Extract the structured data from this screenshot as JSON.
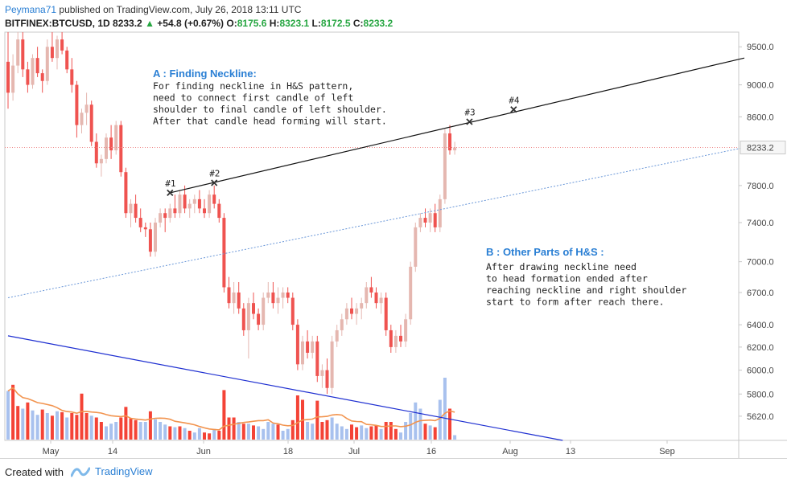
{
  "header": {
    "user": "Peymana71",
    "published": "published on TradingView.com, July 26, 2018 13:11 UTC"
  },
  "symbol": {
    "name": "BITFINEX:BTCUSD, 1D",
    "last": "8233.2",
    "change": "+54.8 (+0.67%)",
    "o_label": "O:",
    "o": "8175.6",
    "h_label": "H:",
    "h": "8323.1",
    "l_label": "L:",
    "l": "8172.5",
    "c_label": "C:",
    "c": "8233.2"
  },
  "footer": {
    "created_with": "Created with",
    "brand": "TradingView"
  },
  "colors": {
    "up": "#e5b7b0",
    "down": "#ef5350",
    "vol_up": "#a8c1ee",
    "vol_down": "#f44336",
    "ma": "#f2944f",
    "neckline": "#111111",
    "trend": "#1e2fd1",
    "dotted": "#6a97d8",
    "price_line": "#e88"
  },
  "chart_data": {
    "type": "candlestick",
    "y_scale": "log",
    "ylim": [
      5430,
      9700
    ],
    "y_ticks": [
      "9500.0",
      "9000.0",
      "8600.0",
      "8233.2",
      "7800.0",
      "7400.0",
      "7000.0",
      "6700.0",
      "6400.0",
      "6200.0",
      "6000.0",
      "5800.0",
      "5620.0"
    ],
    "x_labels": [
      "May",
      "14",
      "Jun",
      "18",
      "Jul",
      "16",
      "Aug",
      "13",
      "Sep"
    ],
    "last_price": 8233.2,
    "candles_ohlc": [
      [
        9300,
        9700,
        8700,
        8900
      ],
      [
        8900,
        9400,
        8800,
        9250
      ],
      [
        9250,
        9700,
        9150,
        9600
      ],
      [
        9600,
        9700,
        9100,
        9200
      ],
      [
        9200,
        9300,
        8900,
        9000
      ],
      [
        9000,
        9400,
        8950,
        9350
      ],
      [
        9350,
        9500,
        9100,
        9150
      ],
      [
        9150,
        9200,
        8900,
        9050
      ],
      [
        9050,
        9600,
        9000,
        9500
      ],
      [
        9500,
        9700,
        9300,
        9350
      ],
      [
        9350,
        9650,
        9200,
        9600
      ],
      [
        9600,
        9700,
        9400,
        9450
      ],
      [
        9450,
        9500,
        9150,
        9200
      ],
      [
        9200,
        9350,
        8900,
        9000
      ],
      [
        9000,
        9050,
        8350,
        8500
      ],
      [
        8500,
        8700,
        8400,
        8650
      ],
      [
        8650,
        8900,
        8500,
        8750
      ],
      [
        8750,
        8800,
        8250,
        8300
      ],
      [
        8300,
        8400,
        8000,
        8050
      ],
      [
        8050,
        8150,
        7900,
        8100
      ],
      [
        8100,
        8400,
        8050,
        8350
      ],
      [
        8350,
        8500,
        8100,
        8200
      ],
      [
        8200,
        8550,
        8150,
        8500
      ],
      [
        8500,
        8550,
        7900,
        7950
      ],
      [
        7950,
        8000,
        7450,
        7500
      ],
      [
        7500,
        7650,
        7350,
        7600
      ],
      [
        7600,
        7700,
        7400,
        7450
      ],
      [
        7450,
        7550,
        7300,
        7350
      ],
      [
        7350,
        7400,
        7250,
        7330
      ],
      [
        7330,
        7400,
        7050,
        7100
      ],
      [
        7100,
        7450,
        7050,
        7400
      ],
      [
        7400,
        7550,
        7350,
        7500
      ],
      [
        7500,
        7550,
        7300,
        7450
      ],
      [
        7450,
        7600,
        7400,
        7550
      ],
      [
        7550,
        7700,
        7450,
        7500
      ],
      [
        7500,
        7750,
        7450,
        7700
      ],
      [
        7700,
        7800,
        7500,
        7550
      ],
      [
        7550,
        7650,
        7450,
        7600
      ],
      [
        7600,
        7700,
        7500,
        7650
      ],
      [
        7650,
        7750,
        7500,
        7550
      ],
      [
        7550,
        7650,
        7450,
        7500
      ],
      [
        7500,
        7750,
        7450,
        7700
      ],
      [
        7700,
        7800,
        7550,
        7600
      ],
      [
        7600,
        7650,
        7400,
        7450
      ],
      [
        7450,
        7500,
        6700,
        6750
      ],
      [
        6750,
        6850,
        6550,
        6600
      ],
      [
        6600,
        6800,
        6500,
        6700
      ],
      [
        6700,
        6800,
        6500,
        6550
      ],
      [
        6550,
        6600,
        6300,
        6350
      ],
      [
        6350,
        6650,
        6100,
        6600
      ],
      [
        6600,
        6700,
        6450,
        6500
      ],
      [
        6500,
        6550,
        6350,
        6400
      ],
      [
        6400,
        6700,
        6350,
        6650
      ],
      [
        6650,
        6800,
        6600,
        6700
      ],
      [
        6700,
        6800,
        6550,
        6600
      ],
      [
        6600,
        6750,
        6500,
        6650
      ],
      [
        6650,
        6750,
        6550,
        6700
      ],
      [
        6700,
        6750,
        6600,
        6650
      ],
      [
        6650,
        6700,
        6350,
        6400
      ],
      [
        6400,
        6450,
        6000,
        6050
      ],
      [
        6050,
        6300,
        6000,
        6250
      ],
      [
        6250,
        6350,
        6100,
        6150
      ],
      [
        6150,
        6300,
        6100,
        6250
      ],
      [
        6250,
        6300,
        5900,
        5950
      ],
      [
        5950,
        6050,
        5850,
        6000
      ],
      [
        6000,
        6100,
        5800,
        5850
      ],
      [
        5850,
        6300,
        5800,
        6250
      ],
      [
        6250,
        6400,
        6200,
        6350
      ],
      [
        6350,
        6500,
        6300,
        6450
      ],
      [
        6450,
        6600,
        6400,
        6550
      ],
      [
        6550,
        6650,
        6450,
        6500
      ],
      [
        6500,
        6600,
        6400,
        6550
      ],
      [
        6550,
        6650,
        6450,
        6600
      ],
      [
        6600,
        6800,
        6550,
        6750
      ],
      [
        6750,
        6850,
        6650,
        6700
      ],
      [
        6700,
        6750,
        6550,
        6600
      ],
      [
        6600,
        6700,
        6500,
        6650
      ],
      [
        6650,
        6700,
        6300,
        6350
      ],
      [
        6350,
        6400,
        6150,
        6200
      ],
      [
        6200,
        6350,
        6150,
        6300
      ],
      [
        6300,
        6400,
        6200,
        6250
      ],
      [
        6250,
        6500,
        6200,
        6450
      ],
      [
        6450,
        7000,
        6400,
        6950
      ],
      [
        6950,
        7400,
        6900,
        7350
      ],
      [
        7350,
        7500,
        7300,
        7450
      ],
      [
        7450,
        7550,
        7350,
        7400
      ],
      [
        7400,
        7550,
        7300,
        7500
      ],
      [
        7500,
        7600,
        7300,
        7350
      ],
      [
        7350,
        7700,
        7300,
        7650
      ],
      [
        7650,
        8450,
        7600,
        8400
      ],
      [
        8400,
        8500,
        8150,
        8200
      ],
      [
        8200,
        8300,
        8150,
        8233
      ]
    ],
    "volume": [
      [
        0.55,
        0
      ],
      [
        0.62,
        1
      ],
      [
        0.38,
        1
      ],
      [
        0.35,
        0
      ],
      [
        0.42,
        1
      ],
      [
        0.33,
        0
      ],
      [
        0.28,
        0
      ],
      [
        0.34,
        1
      ],
      [
        0.3,
        0
      ],
      [
        0.27,
        1
      ],
      [
        0.32,
        0
      ],
      [
        0.31,
        1
      ],
      [
        0.25,
        0
      ],
      [
        0.3,
        1
      ],
      [
        0.28,
        1
      ],
      [
        0.52,
        1
      ],
      [
        0.3,
        1
      ],
      [
        0.27,
        0
      ],
      [
        0.25,
        1
      ],
      [
        0.2,
        1
      ],
      [
        0.15,
        0
      ],
      [
        0.18,
        0
      ],
      [
        0.2,
        0
      ],
      [
        0.25,
        1
      ],
      [
        0.37,
        1
      ],
      [
        0.24,
        1
      ],
      [
        0.22,
        1
      ],
      [
        0.2,
        0
      ],
      [
        0.2,
        0
      ],
      [
        0.32,
        1
      ],
      [
        0.23,
        0
      ],
      [
        0.2,
        0
      ],
      [
        0.17,
        0
      ],
      [
        0.15,
        1
      ],
      [
        0.14,
        0
      ],
      [
        0.15,
        1
      ],
      [
        0.13,
        0
      ],
      [
        0.1,
        1
      ],
      [
        0.08,
        0
      ],
      [
        0.13,
        0
      ],
      [
        0.08,
        1
      ],
      [
        0.07,
        1
      ],
      [
        0.12,
        0
      ],
      [
        0.1,
        1
      ],
      [
        0.56,
        1
      ],
      [
        0.25,
        1
      ],
      [
        0.25,
        1
      ],
      [
        0.2,
        0
      ],
      [
        0.18,
        1
      ],
      [
        0.18,
        0
      ],
      [
        0.16,
        1
      ],
      [
        0.15,
        0
      ],
      [
        0.12,
        0
      ],
      [
        0.2,
        0
      ],
      [
        0.18,
        0
      ],
      [
        0.17,
        1
      ],
      [
        0.1,
        0
      ],
      [
        0.12,
        0
      ],
      [
        0.22,
        1
      ],
      [
        0.5,
        1
      ],
      [
        0.45,
        1
      ],
      [
        0.2,
        0
      ],
      [
        0.18,
        0
      ],
      [
        0.44,
        1
      ],
      [
        0.2,
        1
      ],
      [
        0.22,
        1
      ],
      [
        0.25,
        0
      ],
      [
        0.18,
        0
      ],
      [
        0.15,
        0
      ],
      [
        0.12,
        0
      ],
      [
        0.17,
        1
      ],
      [
        0.14,
        1
      ],
      [
        0.16,
        0
      ],
      [
        0.13,
        0
      ],
      [
        0.15,
        1
      ],
      [
        0.16,
        1
      ],
      [
        0.12,
        0
      ],
      [
        0.2,
        1
      ],
      [
        0.2,
        1
      ],
      [
        0.12,
        1
      ],
      [
        0.08,
        0
      ],
      [
        0.2,
        0
      ],
      [
        0.3,
        0
      ],
      [
        0.42,
        0
      ],
      [
        0.35,
        0
      ],
      [
        0.18,
        1
      ],
      [
        0.16,
        0
      ],
      [
        0.14,
        1
      ],
      [
        0.45,
        0
      ],
      [
        0.7,
        0
      ],
      [
        0.35,
        1
      ],
      [
        0.05,
        0
      ]
    ],
    "neckline": {
      "from": [
        33,
        7720
      ],
      "to": [
        150,
        9350
      ]
    },
    "dotted_line": {
      "from": [
        0,
        6650
      ],
      "to": [
        150,
        8233
      ]
    },
    "trend_line": {
      "from": [
        0,
        6300
      ],
      "to": [
        113,
        5430
      ]
    },
    "marks": [
      {
        "label": "#1",
        "i": 33,
        "price": 7720
      },
      {
        "label": "#2",
        "i": 42,
        "price": 7830
      },
      {
        "label": "#3",
        "i": 94,
        "price": 8540
      },
      {
        "label": "#4",
        "i": 103,
        "price": 8690
      }
    ]
  },
  "annotations": {
    "a_title": "A : Finding Neckline:",
    "a_lines": [
      "For finding neckline in H&S pattern,",
      "need to connect first candle of left",
      "shoulder to final candle of left shoulder.",
      "After that candle head forming will start."
    ],
    "b_title": "B : Other Parts of H&S :",
    "b_lines": [
      "After drawing neckline need",
      "to head formation ended after",
      "reaching neckline and right shoulder",
      "start to form after reach there."
    ]
  }
}
